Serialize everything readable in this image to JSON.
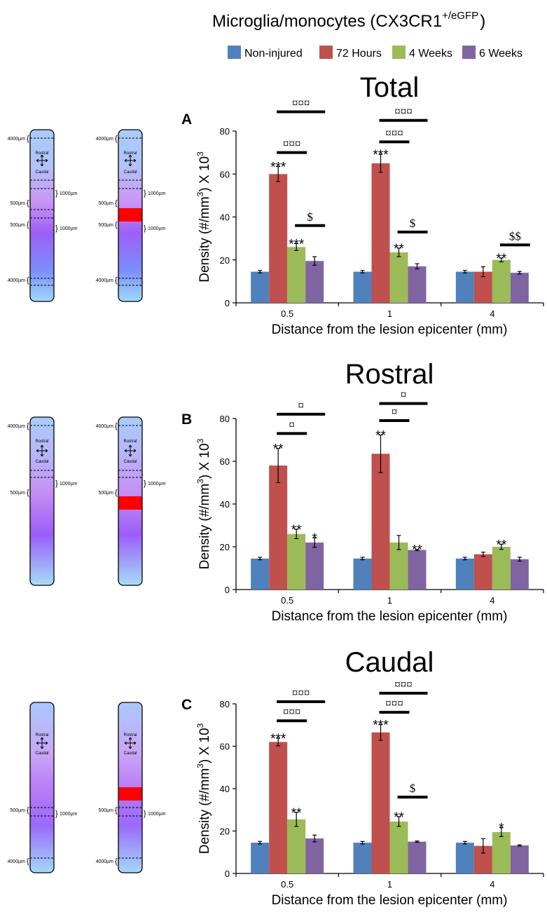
{
  "figure": {
    "title": "Microglia/monocytes (CX3CR1",
    "title_superscript": "+/eGFP",
    "title_close": ")"
  },
  "legend": [
    {
      "name": "Non-injured",
      "color": "#4F81BD"
    },
    {
      "name": "72 Hours",
      "color": "#C0504D"
    },
    {
      "name": "4 Weeks",
      "color": "#9BBB59"
    },
    {
      "name": "6 Weeks",
      "color": "#8064A2"
    }
  ],
  "chart_data": [
    {
      "type": "bar",
      "panel": "A",
      "title": "Total",
      "categories": [
        "0.5",
        "1",
        "4"
      ],
      "xlabel": "Distance from the lesion epicenter (mm)",
      "ylabel": "Density (#/mm",
      "ylabel_sup": "3",
      "ylabel_tail": ") X 10",
      "ylabel_tail_sup": "3",
      "ylim": [
        0,
        80
      ],
      "yticks": [
        0,
        20,
        40,
        60,
        80
      ],
      "series": [
        {
          "name": "Non-injured",
          "values": [
            14.5,
            14.5,
            14.5
          ],
          "errors": [
            0.6,
            0.6,
            0.6
          ],
          "sig": [
            "",
            "",
            ""
          ]
        },
        {
          "name": "72 Hours",
          "values": [
            60,
            65,
            14.5
          ],
          "errors": [
            3.5,
            4.2,
            2.3
          ],
          "sig": [
            "***",
            "***",
            ""
          ]
        },
        {
          "name": "4 Weeks",
          "values": [
            26,
            23.5,
            20
          ],
          "errors": [
            1.6,
            2.0,
            0.9
          ],
          "sig": [
            "***",
            "**",
            "**"
          ]
        },
        {
          "name": "6 Weeks",
          "values": [
            19.5,
            17,
            14
          ],
          "errors": [
            2.0,
            1.2,
            0.6
          ],
          "sig": [
            "",
            "",
            ""
          ]
        }
      ],
      "comparisons": [
        {
          "category": "0.5",
          "from": "72 Hours",
          "to": "6 Weeks",
          "label": "¤¤¤",
          "level": 89
        },
        {
          "category": "0.5",
          "from": "72 Hours",
          "to": "4 Weeks",
          "label": "¤¤¤",
          "level": 70
        },
        {
          "category": "0.5",
          "from": "4 Weeks",
          "to": "6 Weeks",
          "label": "$",
          "level": 36
        },
        {
          "category": "1",
          "from": "72 Hours",
          "to": "6 Weeks",
          "label": "¤¤¤",
          "level": 85
        },
        {
          "category": "1",
          "from": "72 Hours",
          "to": "4 Weeks",
          "label": "¤¤¤",
          "level": 75
        },
        {
          "category": "1",
          "from": "4 Weeks",
          "to": "6 Weeks",
          "label": "$",
          "level": 33
        },
        {
          "category": "4",
          "from": "4 Weeks",
          "to": "6 Weeks",
          "label": "$$",
          "level": 27
        }
      ]
    },
    {
      "type": "bar",
      "panel": "B",
      "title": "Rostral",
      "categories": [
        "0.5",
        "1",
        "4"
      ],
      "xlabel": "Distance from the lesion epicenter (mm)",
      "ylabel": "Density (#/mm",
      "ylabel_sup": "3",
      "ylabel_tail": ") X 10",
      "ylabel_tail_sup": "3",
      "ylim": [
        0,
        80
      ],
      "yticks": [
        0,
        20,
        40,
        60,
        80
      ],
      "series": [
        {
          "name": "Non-injured",
          "values": [
            14.5,
            14.5,
            14.5
          ],
          "errors": [
            0.6,
            0.6,
            0.6
          ],
          "sig": [
            "",
            "",
            ""
          ]
        },
        {
          "name": "72 Hours",
          "values": [
            58,
            63.5,
            16.5
          ],
          "errors": [
            8,
            8.8,
            1.0
          ],
          "sig": [
            "**",
            "**",
            ""
          ]
        },
        {
          "name": "4 Weeks",
          "values": [
            26,
            22,
            20
          ],
          "errors": [
            2.2,
            3.3,
            1.2
          ],
          "sig": [
            "**",
            "",
            "**"
          ]
        },
        {
          "name": "6 Weeks",
          "values": [
            22,
            18.5,
            14.2
          ],
          "errors": [
            2.2,
            0.3,
            0.9
          ],
          "sig": [
            "*",
            "**",
            ""
          ]
        }
      ],
      "comparisons": [
        {
          "category": "0.5",
          "from": "72 Hours",
          "to": "6 Weeks",
          "label": "¤",
          "level": 82
        },
        {
          "category": "0.5",
          "from": "72 Hours",
          "to": "4 Weeks",
          "label": "¤",
          "level": 73
        },
        {
          "category": "1",
          "from": "72 Hours",
          "to": "6 Weeks",
          "label": "¤",
          "level": 87
        },
        {
          "category": "1",
          "from": "72 Hours",
          "to": "4 Weeks",
          "label": "¤",
          "level": 79
        }
      ]
    },
    {
      "type": "bar",
      "panel": "C",
      "title": "Caudal",
      "categories": [
        "0.5",
        "1",
        "4"
      ],
      "xlabel": "Distance from the lesion epicenter (mm)",
      "ylabel": "Density (#/mm",
      "ylabel_sup": "3",
      "ylabel_tail": ") X 10",
      "ylabel_tail_sup": "3",
      "ylim": [
        0,
        80
      ],
      "yticks": [
        0,
        20,
        40,
        60,
        80
      ],
      "series": [
        {
          "name": "Non-injured",
          "values": [
            14.5,
            14.5,
            14.5
          ],
          "errors": [
            0.6,
            0.6,
            0.6
          ],
          "sig": [
            "",
            "",
            ""
          ]
        },
        {
          "name": "72 Hours",
          "values": [
            62,
            66.5,
            13
          ],
          "errors": [
            1.8,
            3.7,
            3.4
          ],
          "sig": [
            "***",
            "***",
            ""
          ]
        },
        {
          "name": "4 Weeks",
          "values": [
            25.5,
            24.5,
            19.5
          ],
          "errors": [
            3.3,
            2.3,
            2.1
          ],
          "sig": [
            "**",
            "**",
            "*"
          ]
        },
        {
          "name": "6 Weeks",
          "values": [
            16.5,
            15,
            13.2
          ],
          "errors": [
            1.6,
            0.3,
            0.3
          ],
          "sig": [
            "",
            "",
            ""
          ]
        }
      ],
      "comparisons": [
        {
          "category": "0.5",
          "from": "72 Hours",
          "to": "6 Weeks",
          "label": "¤¤¤",
          "level": 81
        },
        {
          "category": "0.5",
          "from": "72 Hours",
          "to": "4 Weeks",
          "label": "¤¤¤",
          "level": 72
        },
        {
          "category": "1",
          "from": "72 Hours",
          "to": "6 Weeks",
          "label": "¤¤¤",
          "level": 85
        },
        {
          "category": "1",
          "from": "72 Hours",
          "to": "4 Weeks",
          "label": "¤¤¤",
          "level": 76
        },
        {
          "category": "1",
          "from": "4 Weeks",
          "to": "6 Weeks",
          "label": "$",
          "level": 36
        }
      ]
    }
  ],
  "schematics": [
    {
      "panel": "A",
      "cords": [
        {
          "lesion": false,
          "labels_left": [
            "4000µm",
            "500µm",
            "500µm",
            "4000µm"
          ],
          "labels_right": [
            "1000µm",
            "1000µm"
          ]
        },
        {
          "lesion": true,
          "labels_left": [
            "4000µm",
            "500µm",
            "500µm",
            "4000µm"
          ],
          "labels_right": [
            "1000µm",
            "1000µm"
          ]
        }
      ]
    },
    {
      "panel": "B",
      "cords": [
        {
          "lesion": false,
          "labels_left": [
            "4000µm",
            "500µm"
          ],
          "labels_right": [
            "1000µm"
          ]
        },
        {
          "lesion": true,
          "labels_left": [
            "4000µm",
            "500µm"
          ],
          "labels_right": [
            "1000µm"
          ]
        }
      ]
    },
    {
      "panel": "C",
      "cords": [
        {
          "lesion": false,
          "labels_left": [
            "500µm",
            "4000µm"
          ],
          "labels_right": [
            "1000µm"
          ]
        },
        {
          "lesion": true,
          "labels_left": [
            "500µm",
            "4000µm"
          ],
          "labels_right": [
            "1000µm"
          ]
        }
      ]
    }
  ],
  "orientation": {
    "top": "Rostral",
    "bottom": "Caudal"
  },
  "colors": {
    "lesion": "#FF0000",
    "axis": "#000000"
  }
}
